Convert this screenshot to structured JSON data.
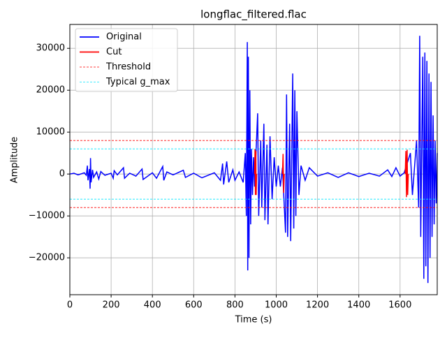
{
  "chart_data": {
    "type": "line",
    "title": "longflac_filtered.flac",
    "xlabel": "Time (s)",
    "ylabel": "Amplitude",
    "xlim": [
      0,
      1780
    ],
    "ylim": [
      -28800,
      35700
    ],
    "xticks": [
      0,
      200,
      400,
      600,
      800,
      1000,
      1200,
      1400,
      1600
    ],
    "yticks": [
      {
        "value": -20000,
        "label": "−20000"
      },
      {
        "value": -10000,
        "label": "−10000"
      },
      0,
      10000,
      20000,
      30000
    ],
    "grid": true,
    "legend": "upper left",
    "series": [
      {
        "name": "Original",
        "color": "#0000ff",
        "style": "solid",
        "x": [
          0,
          20,
          40,
          70,
          80,
          85,
          88,
          95,
          98,
          100,
          103,
          110,
          115,
          130,
          140,
          150,
          170,
          200,
          210,
          215,
          230,
          260,
          265,
          290,
          320,
          350,
          355,
          400,
          420,
          450,
          455,
          470,
          500,
          550,
          560,
          600,
          640,
          700,
          730,
          740,
          745,
          760,
          770,
          790,
          800,
          820,
          840,
          850,
          855,
          860,
          862,
          865,
          868,
          872,
          876,
          880,
          885,
          890,
          895,
          910,
          915,
          925,
          930,
          940,
          945,
          955,
          960,
          970,
          980,
          990,
          1000,
          1010,
          1020,
          1030,
          1045,
          1050,
          1055,
          1065,
          1070,
          1080,
          1085,
          1090,
          1095,
          1100,
          1110,
          1120,
          1140,
          1160,
          1200,
          1250,
          1300,
          1350,
          1400,
          1450,
          1500,
          1540,
          1560,
          1580,
          1600,
          1620,
          1650,
          1660,
          1680,
          1690,
          1695,
          1700,
          1710,
          1715,
          1720,
          1725,
          1730,
          1735,
          1740,
          1745,
          1750,
          1755,
          1760,
          1765,
          1770,
          1775,
          1780
        ],
        "values": [
          0,
          200,
          -200,
          300,
          -300,
          2000,
          -1500,
          1200,
          -3500,
          3800,
          -2000,
          1000,
          -800,
          500,
          -1200,
          600,
          -300,
          200,
          -1000,
          800,
          -200,
          1500,
          -1000,
          200,
          -500,
          1200,
          -1300,
          300,
          -1000,
          1800,
          -1500,
          500,
          -200,
          900,
          -800,
          200,
          -900,
          300,
          -1500,
          2500,
          -2500,
          3000,
          -2000,
          1000,
          -1500,
          500,
          -2000,
          5000,
          -10000,
          31500,
          -23000,
          28000,
          -20000,
          20000,
          -12000,
          6000,
          -5000,
          4000,
          -3000,
          14500,
          -10000,
          8000,
          -8000,
          12000,
          -11000,
          7000,
          -12000,
          9000,
          -6000,
          4000,
          -3000,
          2000,
          -3000,
          1500,
          -14000,
          19000,
          -15000,
          12000,
          -16000,
          24000,
          -13000,
          20000,
          -10000,
          15000,
          -5000,
          2000,
          -1500,
          1500,
          -500,
          300,
          -800,
          300,
          -600,
          200,
          -500,
          1000,
          -600,
          1500,
          -500,
          300,
          5000,
          -5000,
          8000,
          -8000,
          33000,
          -15000,
          28000,
          -25000,
          29000,
          -22000,
          27000,
          -26000,
          24000,
          -20000,
          22000,
          -15000,
          14000,
          -12000,
          8000,
          -7000,
          5000
        ]
      },
      {
        "name": "Cut",
        "color": "#ff0000",
        "style": "solid",
        "x": [
          895,
          897,
          899,
          901,
          903,
          905,
          null,
          1030,
          1033,
          1036,
          1039,
          null,
          1625,
          1628,
          1631,
          1634,
          1637,
          1640
        ],
        "values": [
          0,
          6000,
          -5000,
          5500,
          -5000,
          0,
          null,
          0,
          4800,
          -4500,
          0,
          null,
          0,
          5500,
          -5500,
          5800,
          -5000,
          0
        ]
      },
      {
        "name": "Threshold",
        "color": "#ff0000",
        "style": "dashed",
        "hlines": [
          8000,
          -8000
        ]
      },
      {
        "name": "Typical g_max",
        "color": "#00e5ff",
        "style": "dashed",
        "hlines": [
          6000,
          -6000
        ]
      }
    ]
  }
}
